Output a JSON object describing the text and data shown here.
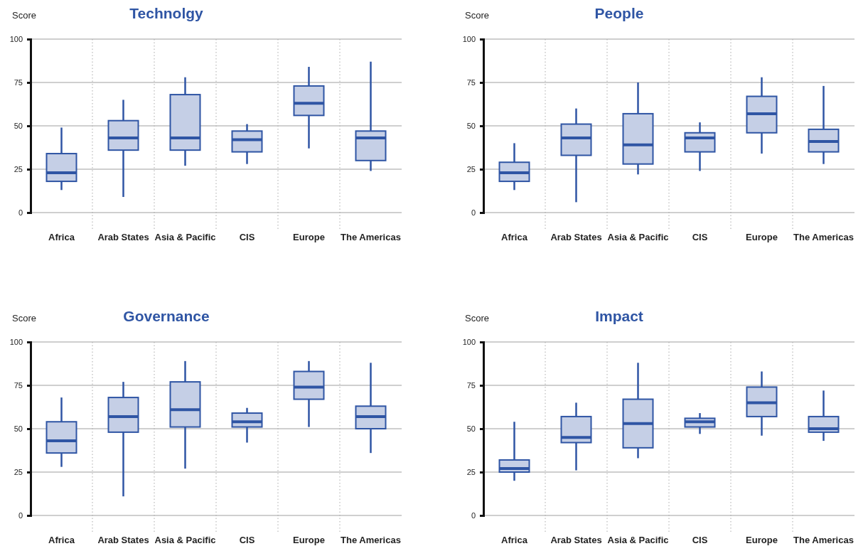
{
  "chart_data": [
    {
      "type": "box",
      "title": "Technolgy",
      "ylabel": "Score",
      "categories": [
        "Africa",
        "Arab States",
        "Asia & Pacific",
        "CIS",
        "Europe",
        "The Americas"
      ],
      "color": "#2f55a4",
      "ylim": [
        0,
        100
      ],
      "yticks": [
        0,
        25,
        50,
        75,
        100
      ],
      "grid": "y",
      "boxes": [
        {
          "low": 13,
          "q1": 18,
          "median": 23,
          "q3": 34,
          "high": 49
        },
        {
          "low": 9,
          "q1": 36,
          "median": 43,
          "q3": 53,
          "high": 65
        },
        {
          "low": 27,
          "q1": 36,
          "median": 43,
          "q3": 68,
          "high": 78
        },
        {
          "low": 28,
          "q1": 35,
          "median": 42,
          "q3": 47,
          "high": 51
        },
        {
          "low": 37,
          "q1": 56,
          "median": 63,
          "q3": 73,
          "high": 84
        },
        {
          "low": 24,
          "q1": 30,
          "median": 43,
          "q3": 47,
          "high": 87
        }
      ]
    },
    {
      "type": "box",
      "title": "People",
      "ylabel": "Score",
      "categories": [
        "Africa",
        "Arab States",
        "Asia & Pacific",
        "CIS",
        "Europe",
        "The Americas"
      ],
      "color": "#2f55a4",
      "ylim": [
        0,
        100
      ],
      "yticks": [
        0,
        25,
        50,
        75,
        100
      ],
      "grid": "y",
      "boxes": [
        {
          "low": 13,
          "q1": 18,
          "median": 23,
          "q3": 29,
          "high": 40
        },
        {
          "low": 6,
          "q1": 33,
          "median": 43,
          "q3": 51,
          "high": 60
        },
        {
          "low": 22,
          "q1": 28,
          "median": 39,
          "q3": 57,
          "high": 75
        },
        {
          "low": 24,
          "q1": 35,
          "median": 43,
          "q3": 46,
          "high": 52
        },
        {
          "low": 34,
          "q1": 46,
          "median": 57,
          "q3": 67,
          "high": 78
        },
        {
          "low": 28,
          "q1": 35,
          "median": 41,
          "q3": 48,
          "high": 73
        }
      ]
    },
    {
      "type": "box",
      "title": "Governance",
      "ylabel": "Score",
      "categories": [
        "Africa",
        "Arab States",
        "Asia & Pacific",
        "CIS",
        "Europe",
        "The Americas"
      ],
      "color": "#2f55a4",
      "ylim": [
        0,
        100
      ],
      "yticks": [
        0,
        25,
        50,
        75,
        100
      ],
      "grid": "y",
      "boxes": [
        {
          "low": 28,
          "q1": 36,
          "median": 43,
          "q3": 54,
          "high": 68
        },
        {
          "low": 11,
          "q1": 48,
          "median": 57,
          "q3": 68,
          "high": 77
        },
        {
          "low": 27,
          "q1": 51,
          "median": 61,
          "q3": 77,
          "high": 89
        },
        {
          "low": 42,
          "q1": 51,
          "median": 54,
          "q3": 59,
          "high": 62
        },
        {
          "low": 51,
          "q1": 67,
          "median": 74,
          "q3": 83,
          "high": 89
        },
        {
          "low": 36,
          "q1": 50,
          "median": 57,
          "q3": 63,
          "high": 88
        }
      ]
    },
    {
      "type": "box",
      "title": "Impact",
      "ylabel": "Score",
      "categories": [
        "Africa",
        "Arab States",
        "Asia & Pacific",
        "CIS",
        "Europe",
        "The Americas"
      ],
      "color": "#2f55a4",
      "ylim": [
        0,
        100
      ],
      "yticks": [
        0,
        25,
        50,
        75,
        100
      ],
      "grid": "y",
      "boxes": [
        {
          "low": 20,
          "q1": 25,
          "median": 27,
          "q3": 32,
          "high": 54
        },
        {
          "low": 26,
          "q1": 42,
          "median": 45,
          "q3": 57,
          "high": 65
        },
        {
          "low": 33,
          "q1": 39,
          "median": 53,
          "q3": 67,
          "high": 88
        },
        {
          "low": 47,
          "q1": 51,
          "median": 54,
          "q3": 56,
          "high": 59
        },
        {
          "low": 46,
          "q1": 57,
          "median": 65,
          "q3": 74,
          "high": 83
        },
        {
          "low": 43,
          "q1": 48,
          "median": 50,
          "q3": 57,
          "high": 72
        }
      ]
    }
  ]
}
